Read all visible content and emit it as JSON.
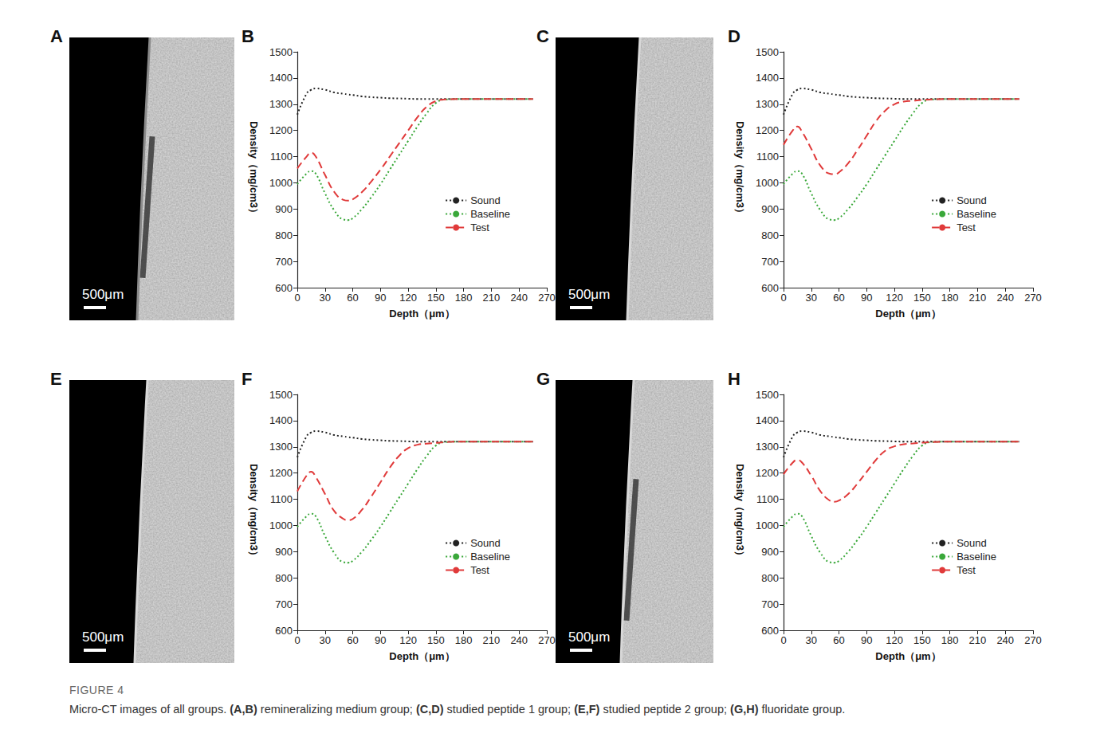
{
  "figure": {
    "label": "FIGURE 4",
    "caption": "Micro-CT images of all groups. (A,B) remineralizing medium group; (C,D) studied peptide 1 group; (E,F) studied peptide 2 group; (G,H) fluoridate group."
  },
  "image_panels": [
    {
      "letter": "A",
      "scale_bar": "500μm"
    },
    {
      "letter": "C",
      "scale_bar": "500μm"
    },
    {
      "letter": "E",
      "scale_bar": "500μm"
    },
    {
      "letter": "G",
      "scale_bar": "500μm"
    }
  ],
  "chart_panel_letters": [
    "B",
    "D",
    "F",
    "H"
  ],
  "chart_data": [
    {
      "type": "line",
      "xlabel": "Depth（μm）",
      "ylabel": "Density（mg/cm3）",
      "x": [
        0,
        10,
        15,
        20,
        30,
        40,
        50,
        55,
        60,
        70,
        80,
        90,
        100,
        110,
        120,
        130,
        140,
        150,
        160,
        180,
        210,
        240,
        255
      ],
      "series": [
        {
          "name": "Sound",
          "color": "#222222",
          "line_style": "dotted",
          "values": [
            1260,
            1340,
            1355,
            1360,
            1355,
            1345,
            1340,
            1337,
            1335,
            1330,
            1327,
            1325,
            1323,
            1322,
            1321,
            1320,
            1320,
            1320,
            1320,
            1320,
            1320,
            1320,
            1320
          ]
        },
        {
          "name": "Baseline",
          "color": "#3aa83a",
          "line_style": "dotted",
          "values": [
            995,
            1035,
            1045,
            1035,
            960,
            895,
            860,
            858,
            865,
            900,
            945,
            995,
            1050,
            1105,
            1160,
            1215,
            1265,
            1305,
            1318,
            1320,
            1320,
            1320,
            1320
          ]
        },
        {
          "name": "Test",
          "color": "#e03a3a",
          "line_style": "dashed",
          "values": [
            1055,
            1100,
            1115,
            1100,
            1030,
            965,
            935,
            932,
            937,
            965,
            1005,
            1050,
            1100,
            1150,
            1200,
            1250,
            1290,
            1312,
            1318,
            1320,
            1320,
            1320,
            1320
          ]
        }
      ],
      "xlim": [
        0,
        270
      ],
      "xticks": [
        0,
        30,
        60,
        90,
        120,
        150,
        180,
        210,
        240,
        270
      ],
      "ylim": [
        600,
        1500
      ],
      "yticks": [
        600,
        700,
        800,
        900,
        1000,
        1100,
        1200,
        1300,
        1400,
        1500
      ],
      "grid": false,
      "legend": "right"
    },
    {
      "type": "line",
      "xlabel": "Depth（μm）",
      "ylabel": "Density（mg/cm3）",
      "x": [
        0,
        10,
        15,
        20,
        30,
        40,
        50,
        55,
        60,
        70,
        80,
        90,
        100,
        110,
        120,
        130,
        140,
        150,
        160,
        180,
        210,
        240,
        255
      ],
      "series": [
        {
          "name": "Sound",
          "color": "#222222",
          "line_style": "dotted",
          "values": [
            1260,
            1340,
            1355,
            1360,
            1355,
            1345,
            1340,
            1337,
            1335,
            1330,
            1327,
            1325,
            1323,
            1322,
            1321,
            1320,
            1320,
            1320,
            1320,
            1320,
            1320,
            1320,
            1320
          ]
        },
        {
          "name": "Baseline",
          "color": "#3aa83a",
          "line_style": "dotted",
          "values": [
            995,
            1035,
            1045,
            1035,
            960,
            895,
            860,
            858,
            865,
            900,
            945,
            995,
            1050,
            1105,
            1160,
            1215,
            1265,
            1305,
            1318,
            1320,
            1320,
            1320,
            1320
          ]
        },
        {
          "name": "Test",
          "color": "#e03a3a",
          "line_style": "dashed",
          "values": [
            1145,
            1200,
            1215,
            1195,
            1130,
            1065,
            1035,
            1033,
            1040,
            1075,
            1125,
            1180,
            1235,
            1275,
            1300,
            1310,
            1313,
            1316,
            1318,
            1320,
            1320,
            1320,
            1320
          ]
        }
      ],
      "xlim": [
        0,
        270
      ],
      "xticks": [
        0,
        30,
        60,
        90,
        120,
        150,
        180,
        210,
        240,
        270
      ],
      "ylim": [
        600,
        1500
      ],
      "yticks": [
        600,
        700,
        800,
        900,
        1000,
        1100,
        1200,
        1300,
        1400,
        1500
      ],
      "grid": false,
      "legend": "right"
    },
    {
      "type": "line",
      "xlabel": "Depth（μm）",
      "ylabel": "Density（mg/cm3）",
      "x": [
        0,
        10,
        15,
        20,
        30,
        40,
        50,
        55,
        60,
        70,
        80,
        90,
        100,
        110,
        120,
        130,
        140,
        150,
        160,
        180,
        210,
        240,
        255
      ],
      "series": [
        {
          "name": "Sound",
          "color": "#222222",
          "line_style": "dotted",
          "values": [
            1260,
            1340,
            1355,
            1360,
            1355,
            1345,
            1340,
            1337,
            1335,
            1330,
            1327,
            1325,
            1323,
            1322,
            1321,
            1320,
            1320,
            1320,
            1320,
            1320,
            1320,
            1320,
            1320
          ]
        },
        {
          "name": "Baseline",
          "color": "#3aa83a",
          "line_style": "dotted",
          "values": [
            995,
            1035,
            1045,
            1035,
            960,
            895,
            860,
            858,
            865,
            900,
            945,
            995,
            1050,
            1105,
            1160,
            1215,
            1265,
            1305,
            1318,
            1320,
            1320,
            1320,
            1320
          ]
        },
        {
          "name": "Test",
          "color": "#e03a3a",
          "line_style": "dashed",
          "values": [
            1130,
            1190,
            1205,
            1185,
            1120,
            1055,
            1025,
            1020,
            1025,
            1060,
            1110,
            1165,
            1220,
            1265,
            1295,
            1308,
            1312,
            1315,
            1318,
            1320,
            1320,
            1320,
            1320
          ]
        }
      ],
      "xlim": [
        0,
        270
      ],
      "xticks": [
        0,
        30,
        60,
        90,
        120,
        150,
        180,
        210,
        240,
        270
      ],
      "ylim": [
        600,
        1500
      ],
      "yticks": [
        600,
        700,
        800,
        900,
        1000,
        1100,
        1200,
        1300,
        1400,
        1500
      ],
      "grid": false,
      "legend": "right"
    },
    {
      "type": "line",
      "xlabel": "Depth（μm）",
      "ylabel": "Density（mg/cm3）",
      "x": [
        0,
        10,
        15,
        20,
        30,
        40,
        50,
        55,
        60,
        70,
        80,
        90,
        100,
        110,
        120,
        130,
        140,
        150,
        160,
        180,
        210,
        240,
        255
      ],
      "series": [
        {
          "name": "Sound",
          "color": "#222222",
          "line_style": "dotted",
          "values": [
            1260,
            1340,
            1355,
            1360,
            1355,
            1345,
            1340,
            1337,
            1335,
            1330,
            1327,
            1325,
            1323,
            1322,
            1321,
            1320,
            1320,
            1320,
            1320,
            1320,
            1320,
            1320,
            1320
          ]
        },
        {
          "name": "Baseline",
          "color": "#3aa83a",
          "line_style": "dotted",
          "values": [
            995,
            1035,
            1045,
            1035,
            960,
            895,
            860,
            858,
            865,
            900,
            945,
            995,
            1050,
            1105,
            1160,
            1215,
            1265,
            1305,
            1318,
            1320,
            1320,
            1320,
            1320
          ]
        },
        {
          "name": "Test",
          "color": "#e03a3a",
          "line_style": "dashed",
          "values": [
            1195,
            1240,
            1250,
            1240,
            1190,
            1130,
            1095,
            1090,
            1095,
            1120,
            1160,
            1205,
            1250,
            1285,
            1302,
            1310,
            1313,
            1316,
            1318,
            1320,
            1320,
            1320,
            1320
          ]
        }
      ],
      "xlim": [
        0,
        270
      ],
      "xticks": [
        0,
        30,
        60,
        90,
        120,
        150,
        180,
        210,
        240,
        270
      ],
      "ylim": [
        600,
        1500
      ],
      "yticks": [
        600,
        700,
        800,
        900,
        1000,
        1100,
        1200,
        1300,
        1400,
        1500
      ],
      "grid": false,
      "legend": "right"
    }
  ]
}
